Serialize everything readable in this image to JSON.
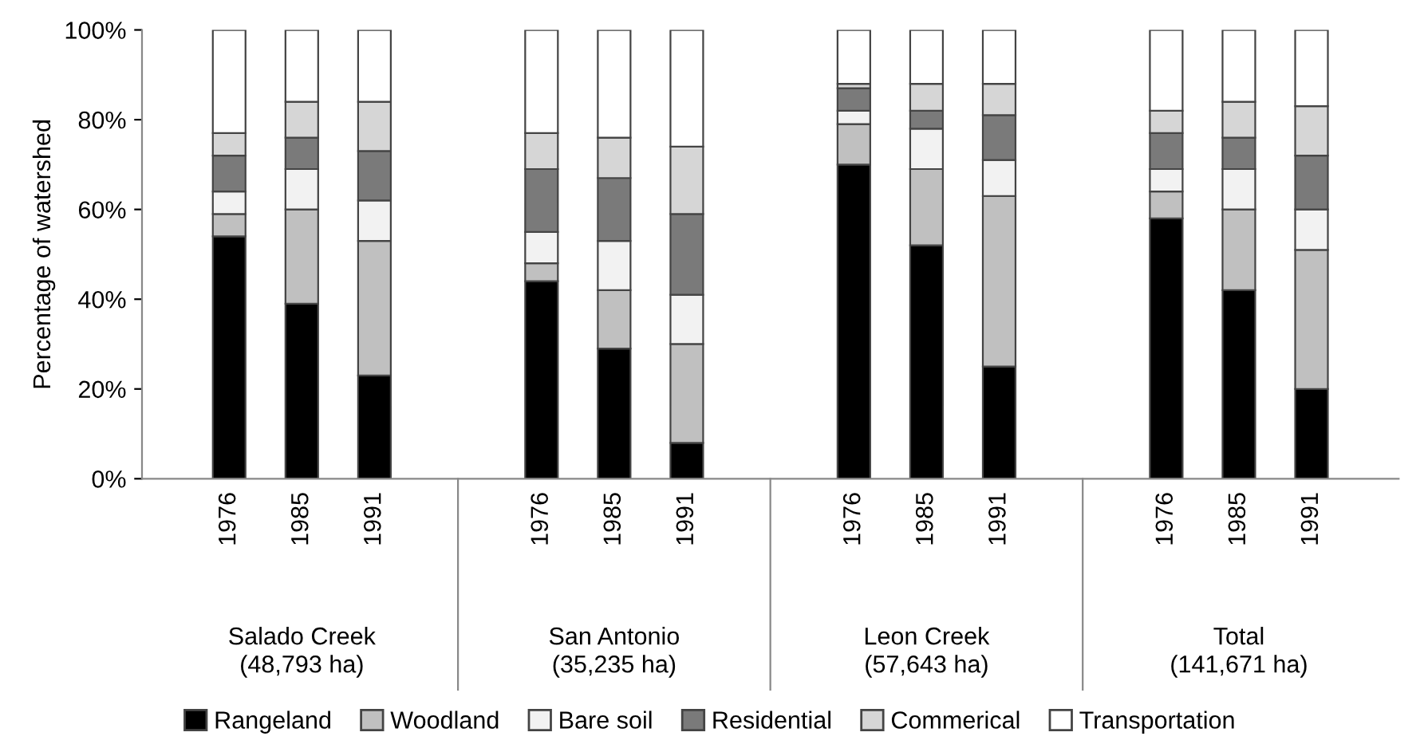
{
  "chart_data": {
    "type": "bar",
    "stacked": true,
    "ylabel": "Percentage of watershed",
    "categories": [
      "1976",
      "1985",
      "1991",
      "1976",
      "1985",
      "1991",
      "1976",
      "1985",
      "1991",
      "1976",
      "1985",
      "1991"
    ],
    "annotations": [
      "Salado Creek\n(48,793 ha)",
      "San Antonio\n(35,235 ha)",
      "Leon Creek\n(57,643 ha)",
      "Total\n(141,671 ha)"
    ],
    "series": [
      {
        "name": "Rangeland",
        "color": "#000000",
        "values": [
          54,
          39,
          23,
          44,
          29,
          8,
          70,
          52,
          25,
          58,
          42,
          20
        ]
      },
      {
        "name": "Woodland",
        "color": "#c0c0c0",
        "values": [
          5,
          21,
          30,
          4,
          13,
          22,
          9,
          17,
          38,
          6,
          18,
          31
        ]
      },
      {
        "name": "Bare soil",
        "color": "#f2f2f2",
        "values": [
          5,
          9,
          9,
          7,
          11,
          11,
          3,
          9,
          8,
          5,
          9,
          9
        ]
      },
      {
        "name": "Residential",
        "color": "#7a7a7a",
        "values": [
          8,
          7,
          11,
          14,
          14,
          18,
          5,
          4,
          10,
          8,
          7,
          12
        ]
      },
      {
        "name": "Commerical",
        "color": "#d6d6d6",
        "values": [
          5,
          8,
          11,
          8,
          9,
          15,
          1,
          6,
          7,
          5,
          8,
          11
        ]
      },
      {
        "name": "Transportation",
        "color": "#ffffff",
        "values": [
          23,
          16,
          16,
          23,
          24,
          26,
          12,
          12,
          12,
          18,
          16,
          17
        ]
      }
    ],
    "ylim": [
      0,
      100
    ],
    "yticks": [
      {
        "value": 0,
        "label": "0%"
      },
      {
        "value": 20,
        "label": "20%"
      },
      {
        "value": 40,
        "label": "40%"
      },
      {
        "value": 60,
        "label": "60%"
      },
      {
        "value": 80,
        "label": "80%"
      },
      {
        "value": 100,
        "label": "100%"
      }
    ],
    "grid": false,
    "legend": "bottom"
  }
}
